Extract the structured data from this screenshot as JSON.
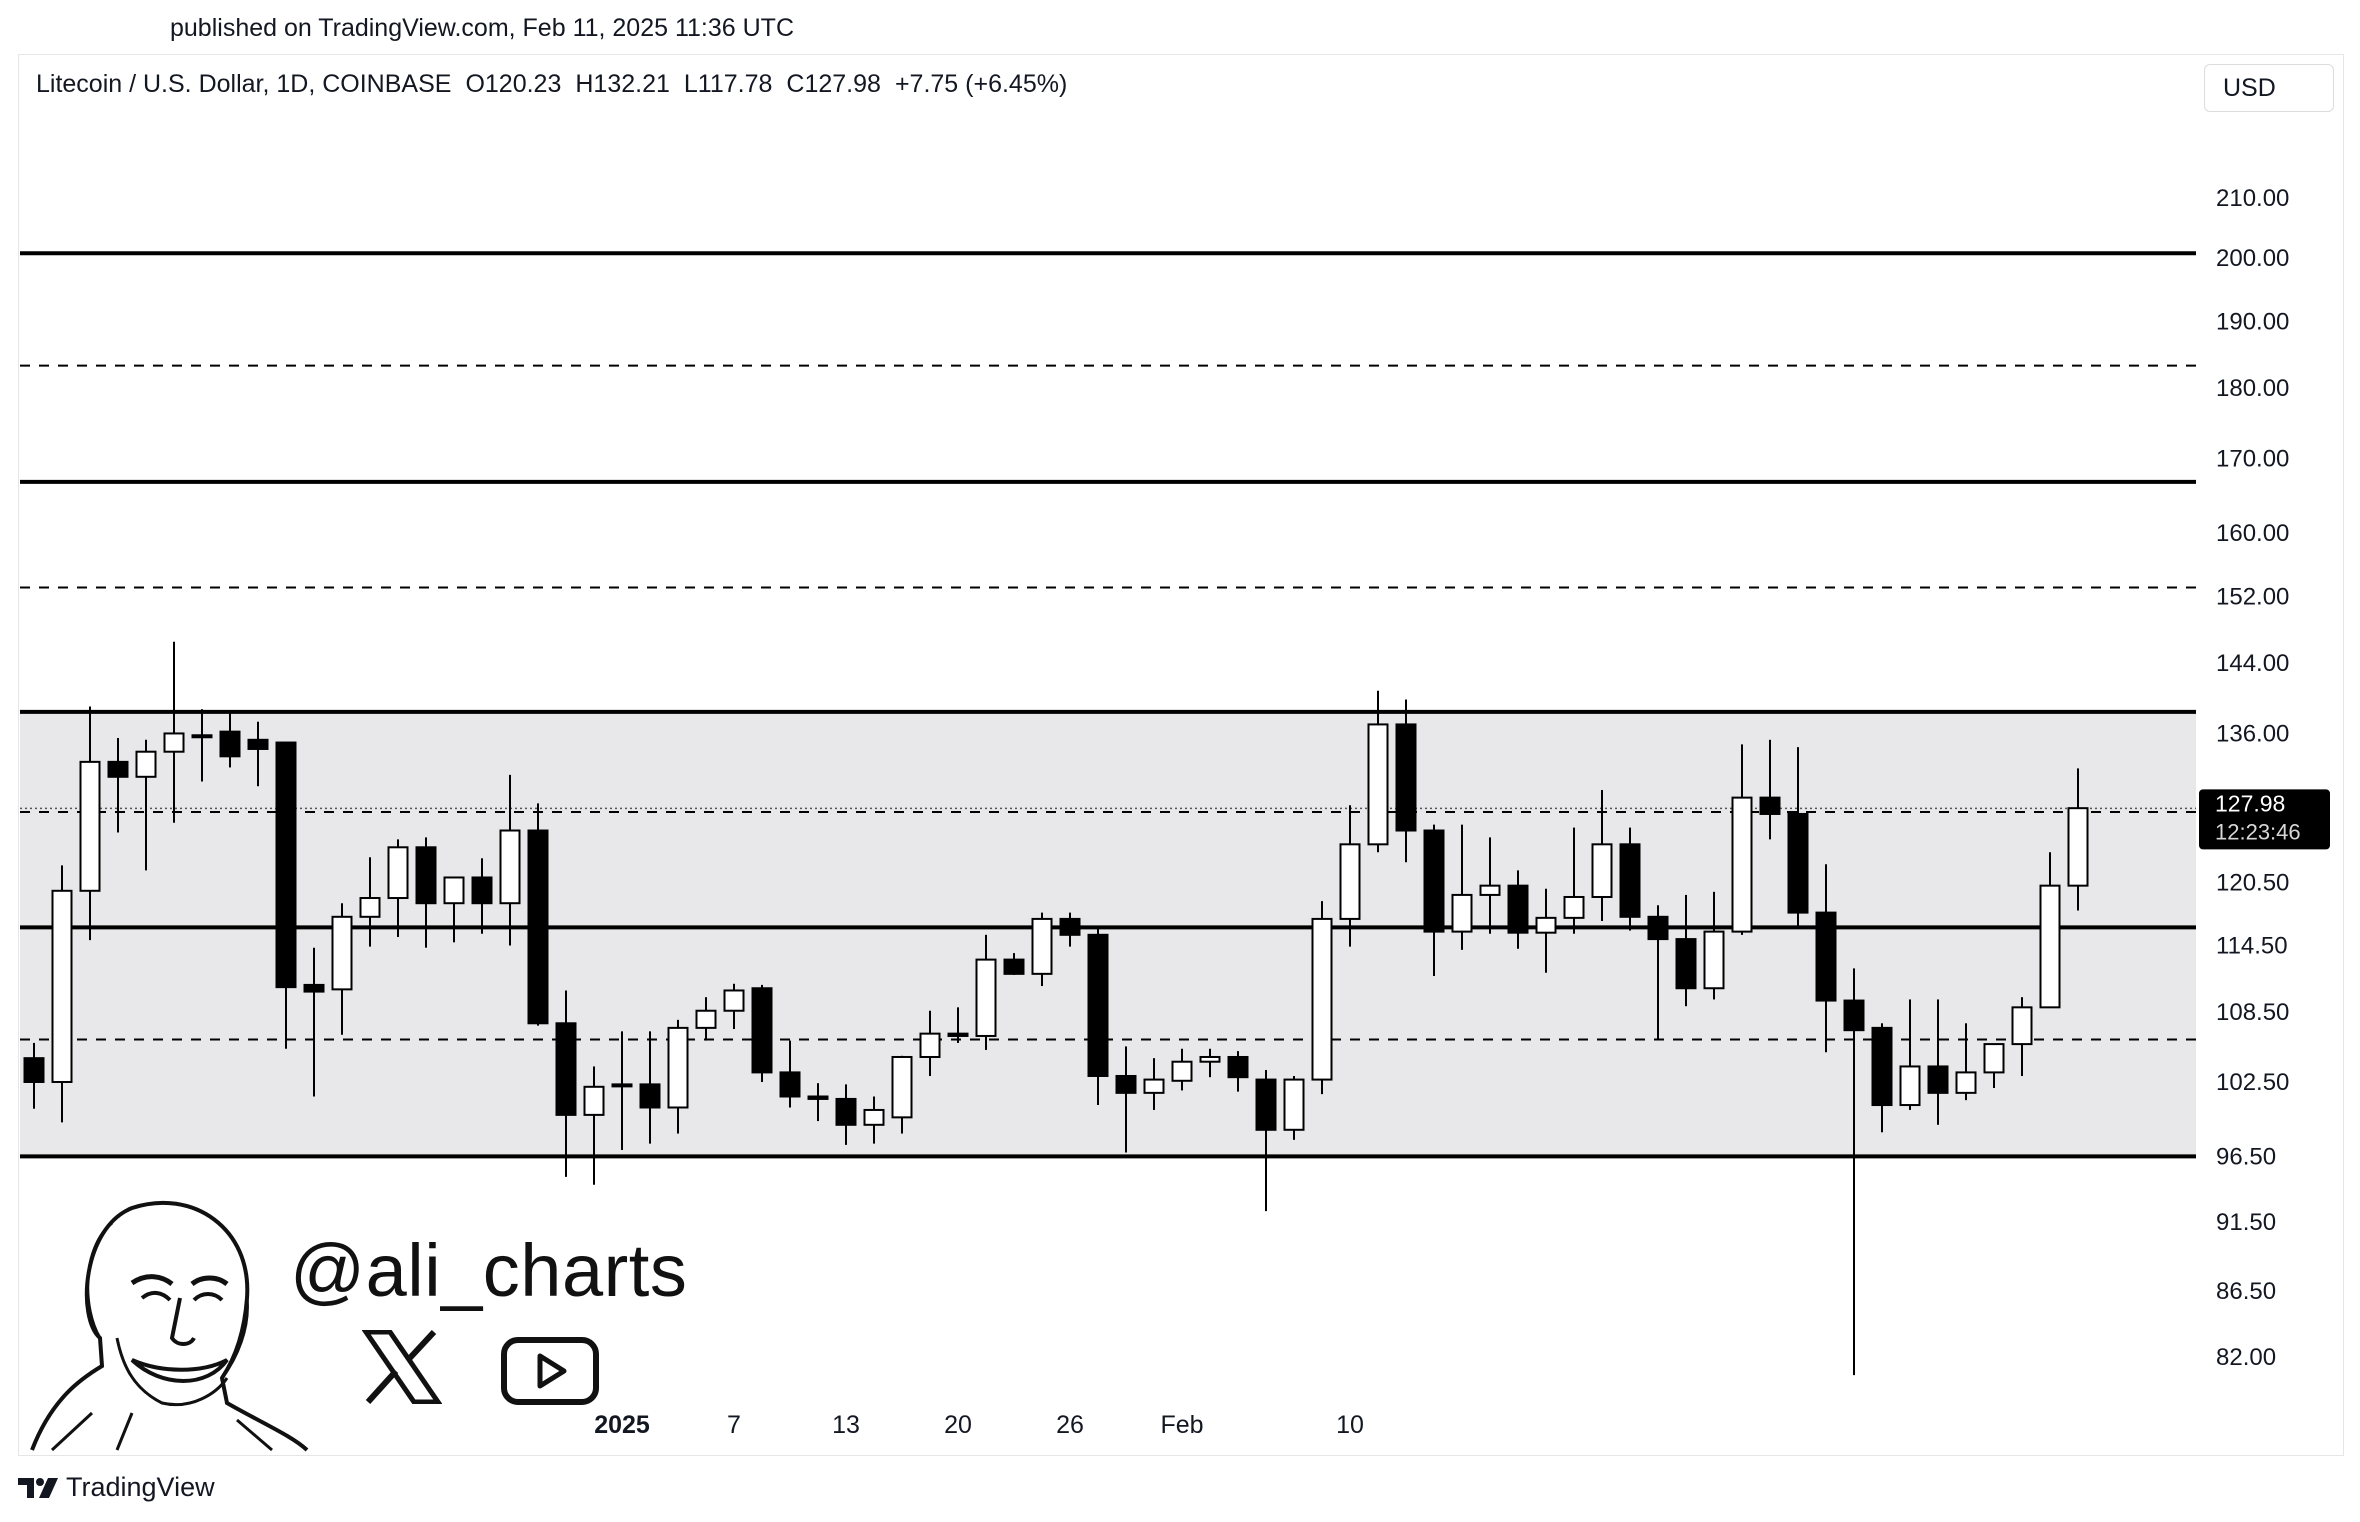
{
  "header": {
    "published": "published on TradingView.com, Feb 11, 2025 11:36 UTC",
    "symbol": "Litecoin / U.S. Dollar, 1D, COINBASE",
    "open": "O120.23",
    "high": "H132.21",
    "low": "L117.78",
    "close": "C127.98",
    "change": "+7.75 (+6.45%)",
    "currency": "USD"
  },
  "price_tag": {
    "price": "127.98",
    "countdown": "12:23:46"
  },
  "branding": {
    "handle": "@ali_charts",
    "footer_logo_text": "TradingView",
    "icons": [
      "x-logo-icon",
      "youtube-icon",
      "avatar-illustration",
      "tradingview-logo-icon"
    ]
  },
  "colors": {
    "up_candle_fill": "#ffffff",
    "down_candle_fill": "#000000",
    "range_band": "#e8e8ea",
    "price_tag_bg": "#000000"
  },
  "chart_data": {
    "type": "candlestick",
    "x_tick_labels": [
      "2025",
      "7",
      "13",
      "20",
      "26",
      "Feb",
      "10"
    ],
    "y_tick_labels": [
      "210.00",
      "200.00",
      "190.00",
      "180.00",
      "170.00",
      "160.00",
      "152.00",
      "144.00",
      "136.00",
      "127.98",
      "120.50",
      "114.50",
      "108.50",
      "102.50",
      "96.50",
      "91.50",
      "86.50",
      "82.00"
    ],
    "y_scale": "log",
    "ylim": [
      79,
      215
    ],
    "shaded_range": [
      96.5,
      138.4
    ],
    "solid_lines": [
      200.8,
      166.8,
      138.4,
      116.2,
      96.5
    ],
    "dashed_lines": [
      183.3,
      153.1,
      127.6,
      106.1
    ],
    "last_price_line": 127.98,
    "candles": [
      {
        "o": 104.5,
        "h": 105.8,
        "l": 100.3,
        "c": 102.5
      },
      {
        "o": 102.5,
        "h": 122.2,
        "l": 99.2,
        "c": 119.7
      },
      {
        "o": 119.7,
        "h": 139.0,
        "l": 115.0,
        "c": 132.9
      },
      {
        "o": 132.9,
        "h": 135.5,
        "l": 125.5,
        "c": 131.3
      },
      {
        "o": 131.3,
        "h": 135.3,
        "l": 121.7,
        "c": 134.0
      },
      {
        "o": 134.0,
        "h": 146.5,
        "l": 126.5,
        "c": 136.0
      },
      {
        "o": 135.8,
        "h": 138.7,
        "l": 130.8,
        "c": 135.6
      },
      {
        "o": 136.2,
        "h": 138.5,
        "l": 132.3,
        "c": 133.5
      },
      {
        "o": 135.3,
        "h": 137.3,
        "l": 130.3,
        "c": 134.3
      },
      {
        "o": 135.0,
        "h": 135.0,
        "l": 105.3,
        "c": 110.7
      },
      {
        "o": 110.9,
        "h": 114.3,
        "l": 101.3,
        "c": 110.3
      },
      {
        "o": 110.5,
        "h": 118.5,
        "l": 106.5,
        "c": 117.2
      },
      {
        "o": 117.2,
        "h": 123.0,
        "l": 114.4,
        "c": 119.0
      },
      {
        "o": 119.0,
        "h": 124.8,
        "l": 115.3,
        "c": 124.0
      },
      {
        "o": 124.0,
        "h": 125.0,
        "l": 114.3,
        "c": 118.5
      },
      {
        "o": 118.5,
        "h": 121.0,
        "l": 114.8,
        "c": 121.0
      },
      {
        "o": 121.0,
        "h": 122.9,
        "l": 115.6,
        "c": 118.5
      },
      {
        "o": 118.5,
        "h": 131.5,
        "l": 114.5,
        "c": 125.7
      },
      {
        "o": 125.7,
        "h": 128.5,
        "l": 107.3,
        "c": 107.5
      },
      {
        "o": 107.5,
        "h": 110.4,
        "l": 94.9,
        "c": 99.8
      },
      {
        "o": 99.8,
        "h": 103.8,
        "l": 94.3,
        "c": 102.1
      },
      {
        "o": 102.3,
        "h": 106.8,
        "l": 97.0,
        "c": 102.3
      },
      {
        "o": 102.3,
        "h": 106.8,
        "l": 97.5,
        "c": 100.4
      },
      {
        "o": 100.4,
        "h": 107.8,
        "l": 98.3,
        "c": 107.1
      },
      {
        "o": 107.1,
        "h": 109.8,
        "l": 106.0,
        "c": 108.6
      },
      {
        "o": 108.6,
        "h": 111.0,
        "l": 107.0,
        "c": 110.4
      },
      {
        "o": 110.6,
        "h": 110.9,
        "l": 102.5,
        "c": 103.3
      },
      {
        "o": 103.3,
        "h": 106.0,
        "l": 100.4,
        "c": 101.3
      },
      {
        "o": 101.3,
        "h": 102.4,
        "l": 99.3,
        "c": 101.1
      },
      {
        "o": 101.1,
        "h": 102.3,
        "l": 97.4,
        "c": 99.0
      },
      {
        "o": 99.0,
        "h": 101.3,
        "l": 97.5,
        "c": 100.2
      },
      {
        "o": 99.6,
        "h": 104.7,
        "l": 98.3,
        "c": 104.6
      },
      {
        "o": 104.6,
        "h": 108.6,
        "l": 103.0,
        "c": 106.6
      },
      {
        "o": 106.6,
        "h": 108.9,
        "l": 105.8,
        "c": 106.4
      },
      {
        "o": 106.4,
        "h": 115.5,
        "l": 105.2,
        "c": 113.2
      },
      {
        "o": 113.2,
        "h": 113.8,
        "l": 111.8,
        "c": 111.9
      },
      {
        "o": 111.9,
        "h": 117.6,
        "l": 110.8,
        "c": 117.0
      },
      {
        "o": 117.0,
        "h": 117.6,
        "l": 114.4,
        "c": 115.5
      },
      {
        "o": 115.5,
        "h": 116.2,
        "l": 100.6,
        "c": 103.0
      },
      {
        "o": 103.0,
        "h": 105.5,
        "l": 96.8,
        "c": 101.6
      },
      {
        "o": 101.6,
        "h": 104.5,
        "l": 100.2,
        "c": 102.7
      },
      {
        "o": 102.6,
        "h": 105.3,
        "l": 101.8,
        "c": 104.2
      },
      {
        "o": 104.2,
        "h": 105.3,
        "l": 102.9,
        "c": 104.6
      },
      {
        "o": 104.6,
        "h": 105.1,
        "l": 101.7,
        "c": 102.9
      },
      {
        "o": 102.7,
        "h": 103.5,
        "l": 92.3,
        "c": 98.6
      },
      {
        "o": 98.6,
        "h": 103.0,
        "l": 97.8,
        "c": 102.7
      },
      {
        "o": 102.7,
        "h": 118.7,
        "l": 101.5,
        "c": 117.0
      },
      {
        "o": 117.0,
        "h": 128.3,
        "l": 114.4,
        "c": 124.3
      },
      {
        "o": 124.3,
        "h": 140.8,
        "l": 123.5,
        "c": 137.0
      },
      {
        "o": 137.0,
        "h": 139.8,
        "l": 122.5,
        "c": 125.7
      },
      {
        "o": 125.7,
        "h": 126.3,
        "l": 111.7,
        "c": 115.8
      },
      {
        "o": 115.8,
        "h": 126.3,
        "l": 114.1,
        "c": 119.3
      },
      {
        "o": 119.3,
        "h": 125.0,
        "l": 115.6,
        "c": 120.2
      },
      {
        "o": 120.2,
        "h": 121.7,
        "l": 114.2,
        "c": 115.7
      },
      {
        "o": 115.7,
        "h": 119.9,
        "l": 112.0,
        "c": 117.1
      },
      {
        "o": 117.1,
        "h": 126.0,
        "l": 115.6,
        "c": 119.1
      },
      {
        "o": 119.1,
        "h": 129.9,
        "l": 116.8,
        "c": 124.3
      },
      {
        "o": 124.3,
        "h": 126.0,
        "l": 115.9,
        "c": 117.2
      },
      {
        "o": 117.2,
        "h": 118.3,
        "l": 106.1,
        "c": 115.1
      },
      {
        "o": 115.1,
        "h": 119.3,
        "l": 109.0,
        "c": 110.6
      },
      {
        "o": 110.6,
        "h": 119.6,
        "l": 109.6,
        "c": 115.8
      },
      {
        "o": 115.8,
        "h": 134.8,
        "l": 115.5,
        "c": 129.1
      },
      {
        "o": 129.1,
        "h": 135.3,
        "l": 124.8,
        "c": 127.4
      },
      {
        "o": 127.4,
        "h": 134.5,
        "l": 116.3,
        "c": 117.6
      },
      {
        "o": 117.6,
        "h": 122.3,
        "l": 105.0,
        "c": 109.5
      },
      {
        "o": 109.5,
        "h": 112.4,
        "l": 80.8,
        "c": 106.9
      },
      {
        "o": 107.1,
        "h": 107.5,
        "l": 98.4,
        "c": 100.6
      },
      {
        "o": 100.6,
        "h": 109.6,
        "l": 100.2,
        "c": 103.8
      },
      {
        "o": 103.8,
        "h": 109.6,
        "l": 99.0,
        "c": 101.6
      },
      {
        "o": 101.6,
        "h": 107.5,
        "l": 101.0,
        "c": 103.3
      },
      {
        "o": 103.3,
        "h": 105.7,
        "l": 102.0,
        "c": 105.7
      },
      {
        "o": 105.7,
        "h": 109.8,
        "l": 103.0,
        "c": 108.9
      },
      {
        "o": 108.9,
        "h": 123.5,
        "l": 108.9,
        "c": 120.2
      },
      {
        "o": 120.2,
        "h": 132.2,
        "l": 117.8,
        "c": 128.0
      }
    ]
  }
}
